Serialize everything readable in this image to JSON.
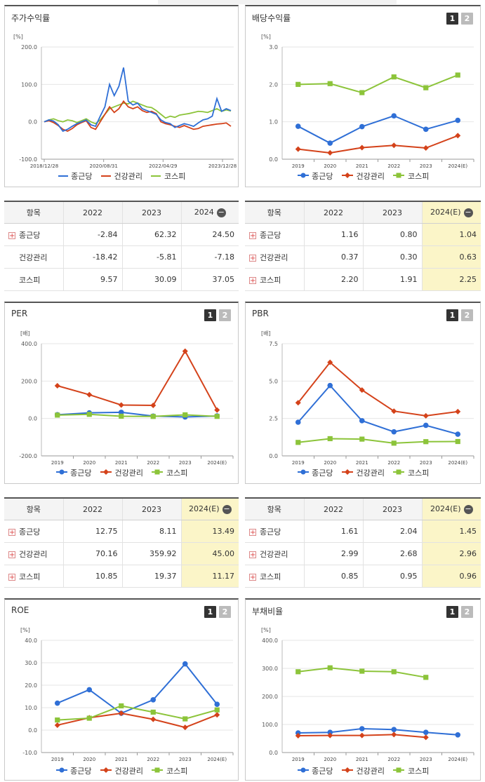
{
  "colors": {
    "series1": "#2f6fd6",
    "series2": "#d4421a",
    "series3": "#8cc43a",
    "highlight": "#fbf5c8"
  },
  "legend": {
    "s1": "종근당",
    "s2": "건강관리",
    "s3": "코스피"
  },
  "panels": {
    "stock": {
      "title": "주가수익률",
      "unit": "[%]",
      "chart_data": {
        "type": "line",
        "title": "주가수익률",
        "ylabel": "[%]",
        "ylim": [
          -100,
          200
        ],
        "yticks": [
          "200.0",
          "100.0",
          "0.0",
          "-100.0"
        ],
        "xticks": [
          "2018/12/28",
          "2020/08/31",
          "2022/04/29",
          "2023/12/28"
        ],
        "x_range": [
          "2018/12/28",
          "2024/07"
        ],
        "series": [
          {
            "name": "종근당",
            "values": [
              0,
              5,
              2,
              -8,
              -25,
              -20,
              -12,
              -5,
              0,
              5,
              -8,
              -12,
              15,
              40,
              100,
              70,
              95,
              145,
              55,
              45,
              50,
              35,
              30,
              25,
              20,
              5,
              -2,
              -5,
              -15,
              -10,
              -5,
              -8,
              -12,
              -3,
              5,
              8,
              15,
              62,
              28,
              35,
              30
            ]
          },
          {
            "name": "건강관리",
            "values": [
              0,
              3,
              -2,
              -10,
              -20,
              -25,
              -18,
              -8,
              -2,
              3,
              -15,
              -20,
              0,
              20,
              40,
              25,
              35,
              55,
              40,
              35,
              40,
              30,
              25,
              28,
              22,
              0,
              -5,
              -8,
              -12,
              -15,
              -10,
              -15,
              -20,
              -18,
              -12,
              -10,
              -8,
              -6,
              -5,
              -3,
              -12
            ]
          },
          {
            "name": "코스피",
            "values": [
              0,
              5,
              8,
              3,
              0,
              5,
              3,
              -2,
              3,
              8,
              0,
              -5,
              5,
              20,
              35,
              40,
              45,
              50,
              48,
              55,
              50,
              45,
              40,
              38,
              30,
              20,
              10,
              15,
              12,
              18,
              20,
              22,
              25,
              28,
              27,
              25,
              30,
              35,
              28,
              32,
              29
            ]
          }
        ]
      }
    },
    "dividend": {
      "title": "배당수익률",
      "unit": "[%]",
      "chart_data": {
        "type": "line",
        "title": "배당수익률",
        "ylabel": "[%]",
        "ylim": [
          0,
          3
        ],
        "yticks": [
          "3.0",
          "2.0",
          "1.0",
          "0.0"
        ],
        "categories": [
          "2019",
          "2020",
          "2021",
          "2022",
          "2023",
          "2024(E)"
        ],
        "series": [
          {
            "name": "종근당",
            "values": [
              0.88,
              0.43,
              0.87,
              1.16,
              0.8,
              1.04
            ]
          },
          {
            "name": "건강관리",
            "values": [
              0.27,
              0.17,
              0.31,
              0.37,
              0.3,
              0.63
            ]
          },
          {
            "name": "코스피",
            "values": [
              2.0,
              2.02,
              1.78,
              2.2,
              1.91,
              2.25
            ]
          }
        ]
      }
    },
    "per": {
      "title": "PER",
      "unit": "[배]",
      "chart_data": {
        "type": "line",
        "title": "PER",
        "ylabel": "[배]",
        "ylim": [
          -200,
          400
        ],
        "yticks": [
          "400.0",
          "200.0",
          "0.0",
          "-200.0"
        ],
        "categories": [
          "2019",
          "2020",
          "2021",
          "2022",
          "2023",
          "2024(E)"
        ],
        "series": [
          {
            "name": "종근당",
            "values": [
              20,
              30,
              33,
              12.75,
              8.11,
              13.49
            ]
          },
          {
            "name": "건강관리",
            "values": [
              175,
              127,
              72,
              70.16,
              359.92,
              45.0
            ]
          },
          {
            "name": "코스피",
            "values": [
              18,
              22,
              12,
              10.85,
              19.37,
              11.17
            ]
          }
        ]
      }
    },
    "pbr": {
      "title": "PBR",
      "unit": "[배]",
      "chart_data": {
        "type": "line",
        "title": "PBR",
        "ylabel": "[배]",
        "ylim": [
          0,
          7.5
        ],
        "yticks": [
          "7.5",
          "5.0",
          "2.5",
          "0.0"
        ],
        "categories": [
          "2019",
          "2020",
          "2021",
          "2022",
          "2023",
          "2024(E)"
        ],
        "series": [
          {
            "name": "종근당",
            "values": [
              2.25,
              4.7,
              2.35,
              1.61,
              2.04,
              1.45
            ]
          },
          {
            "name": "건강관리",
            "values": [
              3.55,
              6.25,
              4.4,
              2.99,
              2.68,
              2.96
            ]
          },
          {
            "name": "코스피",
            "values": [
              0.9,
              1.15,
              1.12,
              0.85,
              0.95,
              0.96
            ]
          }
        ]
      }
    },
    "roe": {
      "title": "ROE",
      "unit": "[%]",
      "chart_data": {
        "type": "line",
        "title": "ROE",
        "ylabel": "[%]",
        "ylim": [
          -10,
          40
        ],
        "yticks": [
          "40.0",
          "30.0",
          "20.0",
          "10.0",
          "0.0",
          "-10.0"
        ],
        "categories": [
          "2019",
          "2020",
          "2021",
          "2022",
          "2023",
          "2024(E)"
        ],
        "series": [
          {
            "name": "종근당",
            "values": [
              12.0,
              18.0,
              7.5,
              13.5,
              29.5,
              11.5
            ]
          },
          {
            "name": "건강관리",
            "values": [
              2.2,
              5.5,
              7.5,
              4.8,
              1.2,
              6.8
            ]
          },
          {
            "name": "코스피",
            "values": [
              4.5,
              5.3,
              10.8,
              8.0,
              5.0,
              9.0
            ]
          }
        ]
      }
    },
    "debt": {
      "title": "부채비율",
      "unit": "[%]",
      "chart_data": {
        "type": "line",
        "title": "부채비율",
        "ylabel": "[%]",
        "ylim": [
          0,
          400
        ],
        "yticks": [
          "400.0",
          "300.0",
          "200.0",
          "100.0",
          "0.0"
        ],
        "categories": [
          "2019",
          "2020",
          "2021",
          "2022",
          "2023",
          "2024(E)"
        ],
        "series": [
          {
            "name": "종근당",
            "values": [
              70,
              72,
              85,
              82,
              72,
              63
            ]
          },
          {
            "name": "건강관리",
            "values": [
              60,
              61,
              61,
              64,
              54,
              null
            ]
          },
          {
            "name": "코스피",
            "values": [
              288,
              302,
              290,
              288,
              268,
              null
            ]
          }
        ]
      }
    }
  },
  "tables": {
    "stock": {
      "header": [
        "항목",
        "2022",
        "2023",
        "2024"
      ],
      "rows": [
        {
          "name": "종근당",
          "plus": true,
          "values": [
            "-2.84",
            "62.32",
            "24.50"
          ]
        },
        {
          "name": "건강관리",
          "plus": false,
          "values": [
            "-18.42",
            "-5.81",
            "-7.18"
          ]
        },
        {
          "name": "코스피",
          "plus": false,
          "values": [
            "9.57",
            "30.09",
            "37.05"
          ]
        }
      ]
    },
    "dividend": {
      "header": [
        "항목",
        "2022",
        "2023",
        "2024(E)"
      ],
      "rows": [
        {
          "name": "종근당",
          "plus": true,
          "values": [
            "1.16",
            "0.80",
            "1.04"
          ]
        },
        {
          "name": "건강관리",
          "plus": true,
          "values": [
            "0.37",
            "0.30",
            "0.63"
          ]
        },
        {
          "name": "코스피",
          "plus": true,
          "values": [
            "2.20",
            "1.91",
            "2.25"
          ]
        }
      ]
    },
    "per": {
      "header": [
        "항목",
        "2022",
        "2023",
        "2024(E)"
      ],
      "rows": [
        {
          "name": "종근당",
          "plus": true,
          "values": [
            "12.75",
            "8.11",
            "13.49"
          ]
        },
        {
          "name": "건강관리",
          "plus": true,
          "values": [
            "70.16",
            "359.92",
            "45.00"
          ]
        },
        {
          "name": "코스피",
          "plus": true,
          "values": [
            "10.85",
            "19.37",
            "11.17"
          ]
        }
      ]
    },
    "pbr": {
      "header": [
        "항목",
        "2022",
        "2023",
        "2024(E)"
      ],
      "rows": [
        {
          "name": "종근당",
          "plus": true,
          "values": [
            "1.61",
            "2.04",
            "1.45"
          ]
        },
        {
          "name": "건강관리",
          "plus": true,
          "values": [
            "2.99",
            "2.68",
            "2.96"
          ]
        },
        {
          "name": "코스피",
          "plus": true,
          "values": [
            "0.85",
            "0.95",
            "0.96"
          ]
        }
      ]
    }
  },
  "toggle": {
    "one": "1",
    "two": "2"
  },
  "minus_glyph": "−",
  "plus_glyph": "+"
}
